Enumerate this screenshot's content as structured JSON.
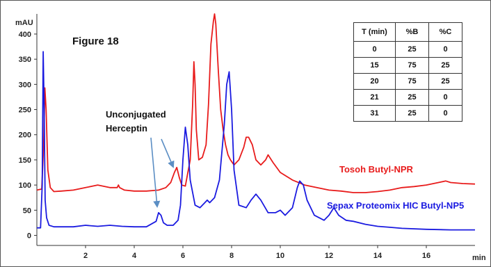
{
  "figure_label": "Figure 18",
  "annotation": {
    "line1": "Unconjugated",
    "line2": "Herceptin"
  },
  "gradient_table": {
    "headers": [
      "T (min)",
      "%B",
      "%C"
    ],
    "rows": [
      [
        "0",
        "25",
        "0"
      ],
      [
        "15",
        "75",
        "25"
      ],
      [
        "20",
        "75",
        "25"
      ],
      [
        "21",
        "25",
        "0"
      ],
      [
        "31",
        "25",
        "0"
      ]
    ]
  },
  "colors": {
    "tosoh": "#e81b1b",
    "sepax": "#1a1ae0",
    "arrow": "#5b8ec4",
    "axis": "#333333"
  },
  "chart_data": {
    "type": "line",
    "xlabel": "min",
    "ylabel": "mAU",
    "xlim": [
      0,
      18
    ],
    "ylim": [
      -20,
      440
    ],
    "xticks": [
      2,
      4,
      6,
      8,
      10,
      12,
      14,
      16
    ],
    "yticks": [
      0,
      50,
      100,
      150,
      200,
      250,
      300,
      350,
      400
    ],
    "series": [
      {
        "name": "Tosoh Butyl-NPR",
        "color": "#e81b1b",
        "x": [
          0.0,
          0.2,
          0.28,
          0.33,
          0.38,
          0.45,
          0.55,
          0.7,
          1.0,
          1.5,
          2.0,
          2.5,
          3.0,
          3.3,
          3.35,
          3.4,
          3.6,
          4.0,
          4.5,
          5.0,
          5.3,
          5.5,
          5.65,
          5.75,
          5.85,
          5.95,
          6.1,
          6.3,
          6.4,
          6.45,
          6.5,
          6.55,
          6.65,
          6.8,
          6.95,
          7.05,
          7.15,
          7.25,
          7.3,
          7.35,
          7.45,
          7.55,
          7.65,
          7.75,
          7.85,
          7.95,
          8.1,
          8.3,
          8.5,
          8.6,
          8.7,
          8.85,
          9.0,
          9.2,
          9.4,
          9.5,
          9.7,
          10.0,
          10.5,
          11.0,
          11.5,
          12.0,
          12.5,
          13.0,
          13.5,
          14.0,
          14.5,
          15.0,
          15.5,
          16.0,
          16.5,
          16.8,
          17.0,
          17.5,
          18.0
        ],
        "y": [
          90,
          92,
          180,
          293,
          250,
          130,
          95,
          87,
          88,
          90,
          95,
          100,
          95,
          95,
          100,
          95,
          90,
          88,
          88,
          90,
          95,
          105,
          125,
          135,
          115,
          100,
          98,
          150,
          260,
          345,
          300,
          210,
          150,
          155,
          180,
          260,
          380,
          425,
          440,
          420,
          330,
          250,
          210,
          180,
          160,
          150,
          140,
          150,
          175,
          195,
          195,
          180,
          150,
          140,
          150,
          160,
          145,
          125,
          110,
          100,
          95,
          90,
          88,
          85,
          85,
          87,
          90,
          95,
          97,
          100,
          105,
          108,
          105,
          103,
          102
        ]
      },
      {
        "name": "Sepax Proteomix HIC Butyl-NP5",
        "color": "#1a1ae0",
        "x": [
          0.0,
          0.15,
          0.22,
          0.26,
          0.3,
          0.34,
          0.4,
          0.5,
          0.7,
          1.0,
          1.5,
          2.0,
          2.5,
          3.0,
          3.5,
          4.0,
          4.5,
          4.9,
          5.0,
          5.1,
          5.2,
          5.35,
          5.6,
          5.8,
          5.9,
          6.0,
          6.1,
          6.2,
          6.3,
          6.5,
          6.7,
          6.9,
          7.0,
          7.1,
          7.3,
          7.5,
          7.7,
          7.8,
          7.9,
          8.0,
          8.1,
          8.3,
          8.6,
          8.8,
          9.0,
          9.2,
          9.5,
          9.8,
          10.0,
          10.2,
          10.5,
          10.7,
          10.8,
          10.95,
          11.1,
          11.4,
          11.8,
          12.0,
          12.2,
          12.4,
          12.7,
          13.0,
          13.5,
          14.0,
          14.5,
          15.0,
          16.0,
          17.0,
          18.0
        ],
        "y": [
          15,
          15,
          100,
          365,
          250,
          70,
          35,
          20,
          17,
          17,
          17,
          20,
          18,
          20,
          18,
          17,
          17,
          28,
          45,
          40,
          25,
          20,
          20,
          30,
          60,
          150,
          215,
          180,
          110,
          60,
          55,
          65,
          70,
          65,
          75,
          110,
          220,
          300,
          325,
          250,
          130,
          60,
          55,
          70,
          82,
          70,
          45,
          45,
          50,
          40,
          55,
          95,
          108,
          100,
          70,
          40,
          30,
          40,
          55,
          40,
          30,
          28,
          22,
          18,
          16,
          14,
          12,
          11,
          11
        ]
      }
    ]
  }
}
